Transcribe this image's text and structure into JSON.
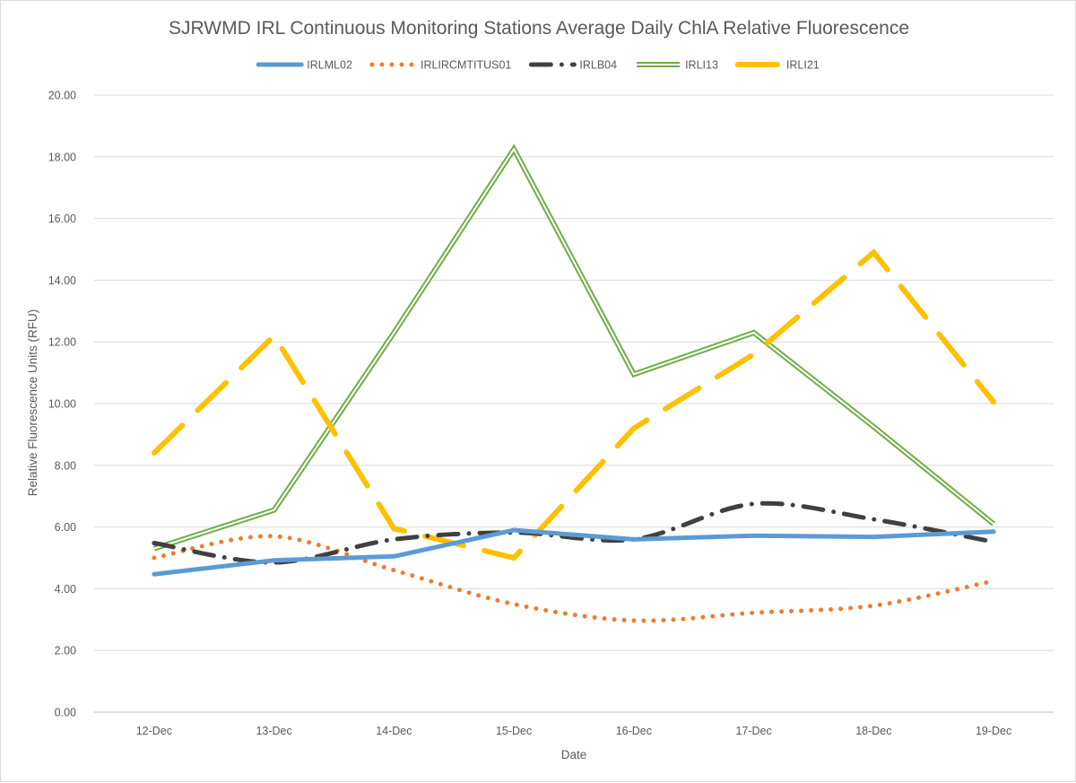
{
  "chart_data": {
    "type": "line",
    "title": "SJRWMD IRL Continuous Monitoring Stations Average Daily ChlA Relative Fluorescence",
    "xlabel": "Date",
    "ylabel": "Relative Fluorescence Units (RFU)",
    "ylim": [
      0,
      20
    ],
    "ytick_step": 2,
    "ytick_labels": [
      "0.00",
      "2.00",
      "4.00",
      "6.00",
      "8.00",
      "10.00",
      "12.00",
      "14.00",
      "16.00",
      "18.00",
      "20.00"
    ],
    "grid": true,
    "legend_position": "top",
    "categories": [
      "12-Dec",
      "13-Dec",
      "14-Dec",
      "15-Dec",
      "16-Dec",
      "17-Dec",
      "18-Dec",
      "19-Dec"
    ],
    "series": [
      {
        "name": "IRLML02",
        "style": "solid",
        "color": "#5b9bd5",
        "smooth": false,
        "values": [
          4.47,
          4.92,
          5.05,
          5.9,
          5.6,
          5.72,
          5.68,
          5.85
        ]
      },
      {
        "name": "IRLIRCMTITUS01",
        "style": "dotted",
        "color": "#ed7d31",
        "smooth": true,
        "values": [
          5.0,
          5.7,
          4.6,
          3.5,
          2.97,
          3.22,
          3.45,
          4.25
        ]
      },
      {
        "name": "IRLB04",
        "style": "dashdot",
        "color": "#404040",
        "smooth": true,
        "values": [
          5.48,
          4.85,
          5.6,
          5.82,
          5.6,
          6.75,
          6.25,
          5.52
        ]
      },
      {
        "name": "IRLI13",
        "style": "double",
        "color": "#70ad47",
        "smooth": false,
        "values": [
          5.3,
          6.55,
          12.3,
          18.25,
          10.95,
          12.3,
          9.25,
          6.1
        ]
      },
      {
        "name": "IRLI21",
        "style": "longdash",
        "color": "#ffc000",
        "smooth": false,
        "values": [
          8.4,
          12.2,
          5.95,
          5.0,
          9.2,
          11.6,
          14.9,
          10.05
        ]
      }
    ]
  }
}
